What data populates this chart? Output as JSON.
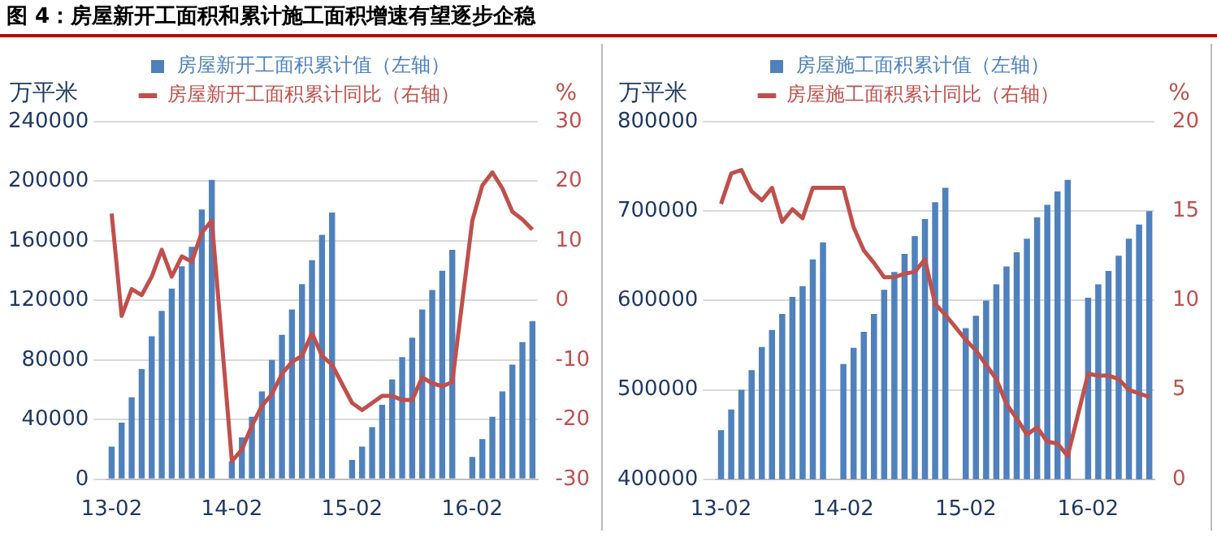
{
  "chart_data": [
    {
      "type": "bar",
      "title": "图 4：房屋新开工面积和累计施工面积增速有望逐步企稳",
      "ylabel": "万平米",
      "y2label": "%",
      "categories": [
        "13-02",
        null,
        null,
        null,
        null,
        null,
        null,
        null,
        null,
        null,
        null,
        null,
        "14-02",
        null,
        null,
        null,
        null,
        null,
        null,
        null,
        null,
        null,
        null,
        null,
        "15-02",
        null,
        null,
        null,
        null,
        null,
        null,
        null,
        null,
        null,
        null,
        null,
        "16-02",
        null,
        null,
        null,
        null,
        null,
        null
      ],
      "series": [
        {
          "name": "房屋新开工面积累计值（左轴）",
          "axis": "y",
          "color": "#4f81bd",
          "values": [
            22000,
            38000,
            55000,
            74000,
            96000,
            113000,
            128000,
            143000,
            156000,
            181000,
            201000,
            null,
            12000,
            28000,
            42000,
            59000,
            80000,
            97000,
            114000,
            131000,
            147000,
            164000,
            179000,
            null,
            13000,
            22000,
            35000,
            50000,
            67000,
            82000,
            95000,
            114000,
            127000,
            140000,
            154000,
            null,
            15000,
            27000,
            42000,
            59000,
            77000,
            92000,
            106000
          ]
        },
        {
          "name": "房屋新开工面积累计同比（右轴）",
          "type": "line",
          "axis": "y2",
          "color": "#c0504d",
          "values": [
            14.6,
            -2.6,
            1.9,
            0.9,
            4.0,
            8.5,
            4.0,
            7.4,
            6.5,
            11.4,
            13.4,
            null,
            -27,
            -25,
            -21,
            -17.7,
            -15.7,
            -12.3,
            -10.3,
            -9.3,
            -5.5,
            -9.3,
            -10.8,
            null,
            -17.2,
            -18.4,
            -17.2,
            -16,
            -16,
            -16.7,
            -16.7,
            -12.9,
            -13.9,
            -14.4,
            -13.7,
            null,
            13.4,
            19.3,
            21.5,
            18.8,
            14.9,
            13.6,
            11.9
          ]
        }
      ],
      "ylim": [
        0,
        240000
      ],
      "yticks": [
        0,
        40000,
        80000,
        120000,
        160000,
        200000,
        240000
      ],
      "y2lim": [
        -30,
        30
      ],
      "y2ticks": [
        -30,
        -20,
        -10,
        0,
        10,
        20,
        30
      ],
      "grid": "y",
      "legend": "top",
      "marker": "none",
      "line_style": "solid"
    },
    {
      "type": "bar",
      "ylabel": "万平米",
      "y2label": "%",
      "categories": [
        "13-02",
        null,
        null,
        null,
        null,
        null,
        null,
        null,
        null,
        null,
        null,
        null,
        "14-02",
        null,
        null,
        null,
        null,
        null,
        null,
        null,
        null,
        null,
        null,
        null,
        "15-02",
        null,
        null,
        null,
        null,
        null,
        null,
        null,
        null,
        null,
        null,
        null,
        "16-02",
        null,
        null,
        null,
        null,
        null,
        null
      ],
      "series": [
        {
          "name": "房屋施工面积累计值（左轴）",
          "axis": "y",
          "color": "#4f81bd",
          "values": [
            455000,
            478000,
            500000,
            522000,
            548000,
            567000,
            585000,
            604000,
            616000,
            646000,
            665000,
            null,
            529000,
            547000,
            565000,
            585000,
            612000,
            632000,
            652000,
            672000,
            691000,
            710000,
            726000,
            null,
            569000,
            583000,
            600000,
            618000,
            638000,
            654000,
            669000,
            693000,
            707000,
            722000,
            735000,
            null,
            603000,
            618000,
            633000,
            650000,
            669000,
            685000,
            700000
          ]
        },
        {
          "name": "房屋施工面积累计同比（右轴）",
          "type": "line",
          "axis": "y2",
          "color": "#c0504d",
          "values": [
            15.4,
            17.1,
            17.3,
            16.1,
            15.6,
            16.3,
            14.4,
            15.1,
            14.6,
            16.3,
            16.3,
            null,
            16.3,
            14.1,
            12.8,
            12.1,
            11.3,
            11.3,
            11.5,
            11.6,
            12.3,
            9.8,
            9.2,
            null,
            7.8,
            7.2,
            6.4,
            5.6,
            4.2,
            3.4,
            2.5,
            2.9,
            2.1,
            2.0,
            1.3,
            null,
            5.9,
            5.8,
            5.8,
            5.6,
            5.0,
            4.8,
            4.6
          ]
        }
      ],
      "ylim": [
        400000,
        800000
      ],
      "yticks": [
        400000,
        500000,
        600000,
        700000,
        800000
      ],
      "y2lim": [
        0,
        20
      ],
      "y2ticks": [
        0,
        5,
        10,
        15,
        20
      ],
      "grid": "y",
      "legend": "top",
      "marker": "none",
      "line_style": "solid"
    }
  ]
}
